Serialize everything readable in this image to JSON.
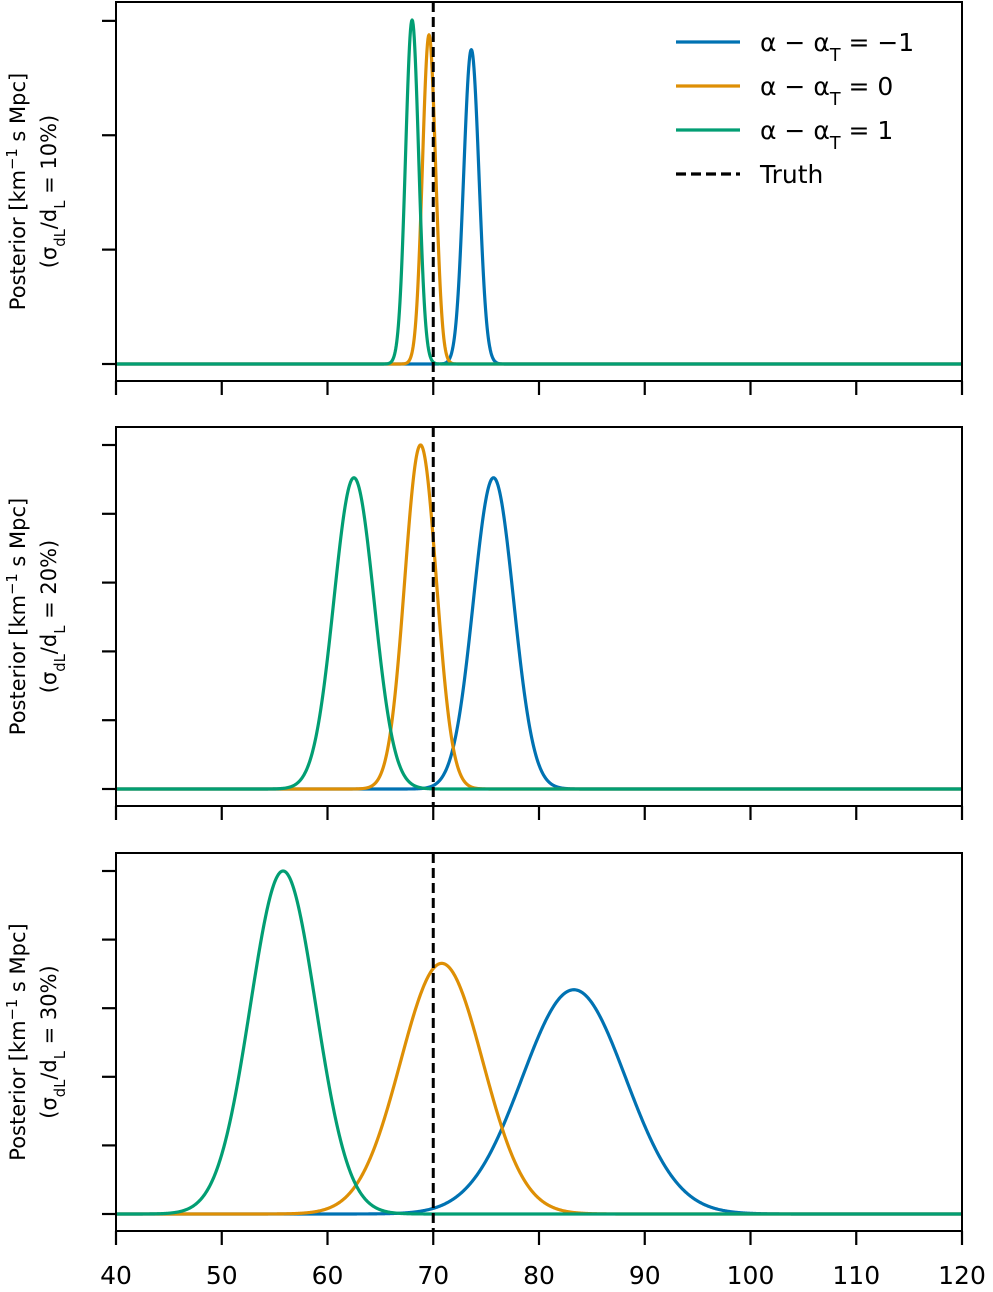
{
  "chart_data": {
    "type": "line",
    "xlim": [
      40,
      120
    ],
    "xticks": [
      40,
      50,
      60,
      70,
      80,
      90,
      100,
      110,
      120
    ],
    "xtick_labels": [
      "40",
      "50",
      "60",
      "70",
      "80",
      "90",
      "100",
      "110",
      "120"
    ],
    "truth_value": 70,
    "colors": {
      "minus1": "#0072b2",
      "zero": "#de8f05",
      "plus1": "#029e73",
      "truth": "#000000"
    },
    "legend": {
      "placement": "top-right",
      "entries": [
        {
          "key": "minus1",
          "label": "α − α_T = −1"
        },
        {
          "key": "zero",
          "label": "α − α_T = 0"
        },
        {
          "key": "plus1",
          "label": "α − α_T = 1"
        },
        {
          "key": "truth",
          "label": "Truth"
        }
      ]
    },
    "panels": [
      {
        "ylabel": "Posterior [km⁻¹ s Mpc]",
        "ylabel2": "(σ_dL/d_L = 10%)",
        "ymax_rel": 1.02,
        "ytick_fracs": [
          0,
          0.35,
          0.7,
          1.05
        ],
        "series": [
          {
            "key": "minus1",
            "mean": 73.6,
            "sigma": 0.72,
            "peak": 0.955
          },
          {
            "key": "zero",
            "mean": 69.6,
            "sigma": 0.62,
            "peak": 1.0
          },
          {
            "key": "plus1",
            "mean": 68.0,
            "sigma": 0.62,
            "peak": 1.045
          }
        ]
      },
      {
        "ylabel": "Posterior [km⁻¹ s Mpc]",
        "ylabel2": "(σ_dL/d_L = 20%)",
        "ymax_rel": 1.07,
        "ytick_fracs": [
          0,
          0.2,
          0.4,
          0.6,
          0.8,
          1.0
        ],
        "series": [
          {
            "key": "minus1",
            "mean": 75.7,
            "sigma": 1.9,
            "peak": 0.95
          },
          {
            "key": "zero",
            "mean": 68.8,
            "sigma": 1.5,
            "peak": 1.05
          },
          {
            "key": "plus1",
            "mean": 62.5,
            "sigma": 1.9,
            "peak": 0.95
          }
        ]
      },
      {
        "ylabel": "Posterior [km⁻¹ s Mpc]",
        "ylabel2": "(σ_dL/d_L = 30%)",
        "ymax_rel": 1.05,
        "ytick_fracs": [
          0,
          0.2,
          0.4,
          0.6,
          0.8,
          1.0
        ],
        "series": [
          {
            "key": "minus1",
            "mean": 83.3,
            "sigma": 4.9,
            "peak": 0.68
          },
          {
            "key": "zero",
            "mean": 70.8,
            "sigma": 3.9,
            "peak": 0.76
          },
          {
            "key": "plus1",
            "mean": 55.8,
            "sigma": 3.1,
            "peak": 1.04
          }
        ]
      }
    ]
  }
}
